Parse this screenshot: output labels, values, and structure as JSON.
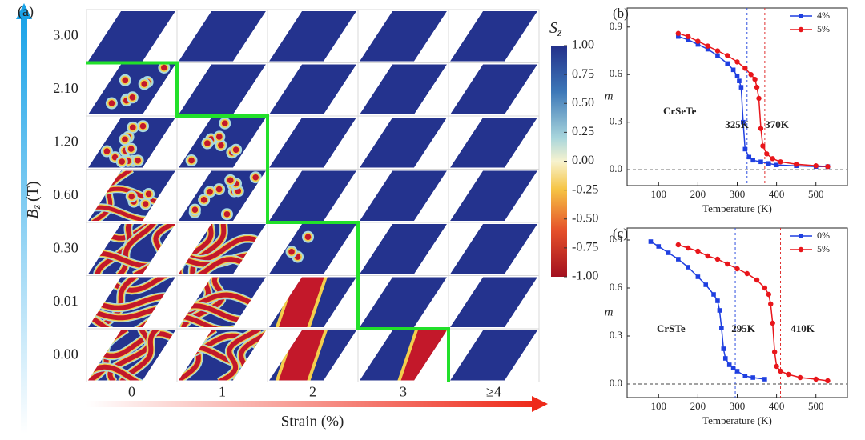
{
  "panel_a": {
    "label": "(a)",
    "rows": [
      "3.00",
      "2.10",
      "1.20",
      "0.60",
      "0.30",
      "0.01",
      "0.00"
    ],
    "columns": [
      "0",
      "1",
      "2",
      "3",
      "≥4"
    ],
    "x_label": "Strain (%)",
    "y_label": {
      "symbol": "B",
      "subscript": "z",
      "unit": "(T)"
    },
    "colorbar": {
      "label": {
        "symbol": "S",
        "subscript": "z"
      },
      "lim": [
        -1,
        1
      ],
      "ticks": [
        {
          "value": 1,
          "label": "1.00"
        },
        {
          "value": 0.75,
          "label": "0.75"
        },
        {
          "value": 0.5,
          "label": "0.50"
        },
        {
          "value": 0.25,
          "label": "0.25"
        },
        {
          "value": 0,
          "label": "0.00"
        },
        {
          "value": -0.25,
          "label": "-0.25"
        },
        {
          "value": -0.5,
          "label": "-0.50"
        },
        {
          "value": -0.75,
          "label": "-0.75"
        },
        {
          "value": -1,
          "label": "-1.00"
        }
      ]
    }
  },
  "chart_data": [
    {
      "type": "line",
      "panel_label": "(b)",
      "x_label": "Temperature (K)",
      "y_label": "m",
      "xlim": [
        20,
        580
      ],
      "xticks": [
        100,
        200,
        300,
        400,
        500
      ],
      "ylim": [
        -0.1,
        1.02
      ],
      "yticks": [
        {
          "value": 0,
          "label": "0.0"
        },
        0.3,
        0.6,
        0.9
      ],
      "legend": "upper right",
      "series": [
        {
          "name": "4%",
          "color": "#1f3fe0",
          "marker": "square",
          "x": [
            150,
            175,
            200,
            225,
            250,
            275,
            290,
            300,
            305,
            310,
            315,
            320,
            330,
            340,
            360,
            380,
            400,
            450,
            500,
            530
          ],
          "values": [
            0.84,
            0.82,
            0.79,
            0.76,
            0.72,
            0.67,
            0.63,
            0.59,
            0.56,
            0.52,
            0.3,
            0.13,
            0.08,
            0.06,
            0.05,
            0.04,
            0.03,
            0.025,
            0.02,
            0.02
          ]
        },
        {
          "name": "5%",
          "color": "#e8161b",
          "marker": "circle",
          "x": [
            150,
            175,
            200,
            225,
            250,
            275,
            300,
            320,
            335,
            345,
            350,
            355,
            360,
            365,
            375,
            390,
            410,
            450,
            500,
            530
          ],
          "values": [
            0.86,
            0.84,
            0.81,
            0.78,
            0.75,
            0.72,
            0.68,
            0.64,
            0.6,
            0.57,
            0.52,
            0.45,
            0.26,
            0.15,
            0.1,
            0.07,
            0.05,
            0.035,
            0.025,
            0.02
          ]
        }
      ],
      "vlines": [
        {
          "value": 325,
          "color": "#3050e0"
        },
        {
          "value": 370,
          "color": "#e03030"
        }
      ],
      "annotations": [
        "CrSeTe",
        "325K",
        "370K"
      ]
    },
    {
      "type": "line",
      "panel_label": "(c)",
      "x_label": "Temperature (K)",
      "y_label": "m",
      "xlim": [
        20,
        580
      ],
      "xticks": [
        100,
        200,
        300,
        400,
        500
      ],
      "ylim": [
        -0.085,
        0.975
      ],
      "yticks": [
        {
          "value": 0,
          "label": "0.0"
        },
        0.3,
        0.6,
        0.9
      ],
      "legend": "upper right",
      "series": [
        {
          "name": "0%",
          "color": "#1f3fe0",
          "marker": "square",
          "x": [
            80,
            100,
            125,
            150,
            175,
            200,
            220,
            240,
            250,
            255,
            260,
            265,
            270,
            280,
            290,
            300,
            320,
            340,
            370
          ],
          "values": [
            0.89,
            0.86,
            0.82,
            0.78,
            0.73,
            0.67,
            0.62,
            0.56,
            0.52,
            0.46,
            0.35,
            0.22,
            0.16,
            0.12,
            0.1,
            0.08,
            0.05,
            0.04,
            0.03
          ]
        },
        {
          "name": "5%",
          "color": "#e8161b",
          "marker": "circle",
          "x": [
            150,
            175,
            200,
            225,
            250,
            275,
            300,
            325,
            350,
            370,
            380,
            385,
            390,
            395,
            400,
            410,
            430,
            460,
            500,
            530
          ],
          "values": [
            0.87,
            0.85,
            0.83,
            0.8,
            0.78,
            0.75,
            0.72,
            0.69,
            0.65,
            0.6,
            0.56,
            0.5,
            0.38,
            0.2,
            0.11,
            0.08,
            0.06,
            0.04,
            0.03,
            0.02
          ]
        }
      ],
      "vlines": [
        {
          "value": 295,
          "color": "#3050e0"
        },
        {
          "value": 410,
          "color": "#e03030"
        }
      ],
      "annotations": [
        "CrSTe",
        "295K",
        "410K"
      ]
    }
  ]
}
